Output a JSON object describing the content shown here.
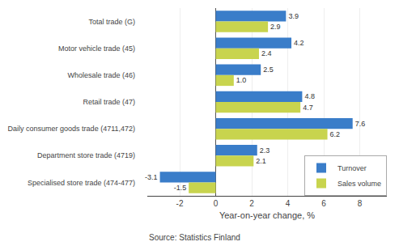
{
  "chart_data": {
    "type": "bar",
    "orientation": "horizontal",
    "categories": [
      "Total trade (G)",
      "Motor vehicle trade (45)",
      "Wholesale trade (46)",
      "Retail trade (47)",
      "Daily consumer goods trade (4711,472)",
      "Department store trade (4719)",
      "Specialised store trade (474-477)"
    ],
    "series": [
      {
        "name": "Turnover",
        "color": "#3A7DC9",
        "values": [
          3.9,
          4.2,
          2.5,
          4.8,
          7.6,
          2.3,
          -3.1
        ],
        "value_labels": [
          "3.9",
          "4.2",
          "2.5",
          "4.8",
          "7.6",
          "2.3",
          "-3.1"
        ]
      },
      {
        "name": "Sales volume",
        "color": "#C8D44E",
        "values": [
          2.9,
          2.4,
          1.0,
          4.7,
          6.2,
          2.1,
          -1.5
        ],
        "value_labels": [
          "2.9",
          "2.4",
          "1.0",
          "4.7",
          "6.2",
          "2.1",
          "-1.5"
        ]
      }
    ],
    "xlabel": "Year-on-year change, %",
    "xlim": [
      -3.8,
      9.5
    ],
    "xticks": [
      -2,
      0,
      2,
      4,
      6,
      8
    ],
    "grid": true,
    "legend": "lower right",
    "data_labels": true,
    "annotations": [
      "Source: Statistics Finland"
    ]
  }
}
